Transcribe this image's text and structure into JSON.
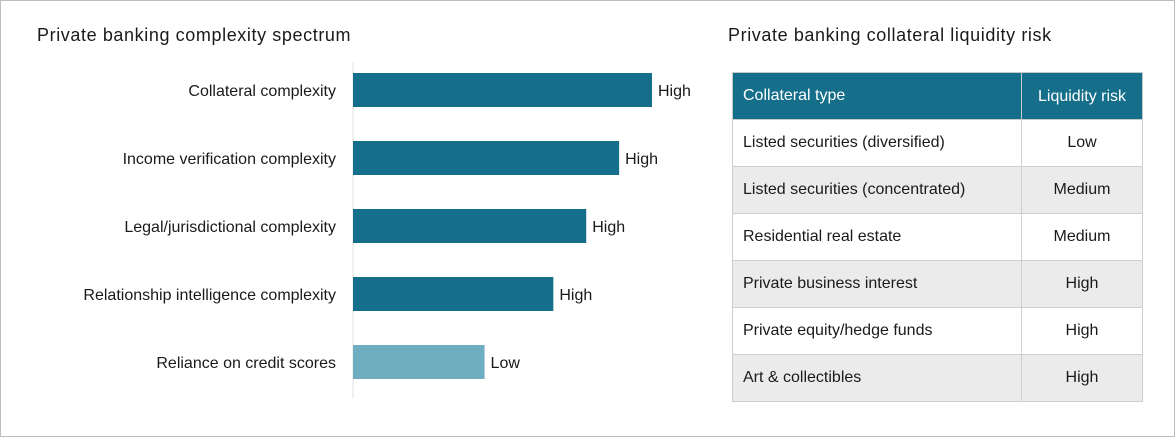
{
  "chart_data": [
    {
      "type": "bar",
      "orientation": "horizontal",
      "title": "Private banking complexity spectrum",
      "categories": [
        "Collateral complexity",
        "Income verification complexity",
        "Legal/jurisdictional complexity",
        "Relationship intelligence complexity",
        "Reliance on credit scores"
      ],
      "values": [
        1.0,
        0.89,
        0.78,
        0.67,
        0.44
      ],
      "labels": [
        "High",
        "High",
        "High",
        "High",
        "Low"
      ],
      "bar_colors": [
        "#156e8a",
        "#156e8a",
        "#156e8a",
        "#156e8a",
        "#6eaec0"
      ],
      "xlim": [
        0,
        1
      ],
      "grid": false,
      "legend": "none"
    },
    {
      "type": "table",
      "title": "Private banking collateral liquidity risk",
      "columns": [
        "Collateral type",
        "Liquidity risk"
      ],
      "rows": [
        [
          "Listed securities (diversified)",
          "Low"
        ],
        [
          "Listed securities (concentrated)",
          "Medium"
        ],
        [
          "Residential real estate",
          "Medium"
        ],
        [
          "Private business interest",
          "High"
        ],
        [
          "Private equity/hedge funds",
          "High"
        ],
        [
          "Art & collectibles",
          "High"
        ]
      ],
      "header_color": "#156e8a"
    }
  ],
  "colors": {
    "primary": "#156e8a",
    "light": "#6eaec0",
    "row_stripe": "#ebebeb"
  }
}
